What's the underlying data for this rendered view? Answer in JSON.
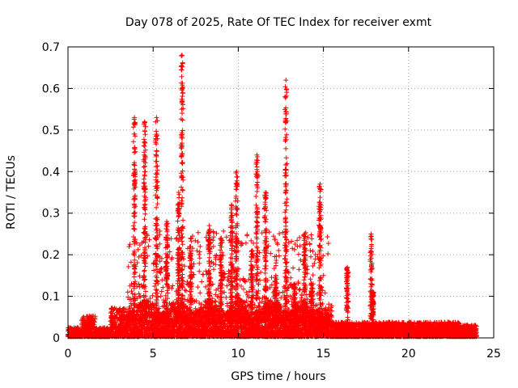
{
  "chart_data": {
    "type": "scatter",
    "title": "Day 078 of 2025, Rate Of TEC Index for receiver exmt",
    "xlabel": "GPS time / hours",
    "ylabel": "ROTI / TECUs",
    "xlim": [
      0,
      25
    ],
    "ylim": [
      0,
      0.7
    ],
    "xticks": [
      "0",
      "5",
      "10",
      "15",
      "20",
      "25"
    ],
    "yticks": [
      "0",
      "0.1",
      "0.2",
      "0.3",
      "0.4",
      "0.5",
      "0.6",
      "0.7"
    ],
    "grid": true,
    "marker": "+",
    "color": "#ff0000",
    "peaks": [
      {
        "x": 3.9,
        "ymax": 0.53
      },
      {
        "x": 4.5,
        "ymax": 0.52
      },
      {
        "x": 5.2,
        "ymax": 0.53
      },
      {
        "x": 5.8,
        "ymax": 0.28
      },
      {
        "x": 6.5,
        "ymax": 0.35
      },
      {
        "x": 6.7,
        "ymax": 0.68
      },
      {
        "x": 7.2,
        "ymax": 0.24
      },
      {
        "x": 8.3,
        "ymax": 0.27
      },
      {
        "x": 9.0,
        "ymax": 0.24
      },
      {
        "x": 9.6,
        "ymax": 0.32
      },
      {
        "x": 9.9,
        "ymax": 0.4
      },
      {
        "x": 10.8,
        "ymax": 0.21
      },
      {
        "x": 11.1,
        "ymax": 0.44
      },
      {
        "x": 11.6,
        "ymax": 0.35
      },
      {
        "x": 12.2,
        "ymax": 0.15
      },
      {
        "x": 12.8,
        "ymax": 0.62
      },
      {
        "x": 13.3,
        "ymax": 0.13
      },
      {
        "x": 13.9,
        "ymax": 0.25
      },
      {
        "x": 14.3,
        "ymax": 0.13
      },
      {
        "x": 14.8,
        "ymax": 0.37
      },
      {
        "x": 16.4,
        "ymax": 0.17
      },
      {
        "x": 17.8,
        "ymax": 0.25
      },
      {
        "x": 17.9,
        "ymax": 0.11
      }
    ]
  }
}
